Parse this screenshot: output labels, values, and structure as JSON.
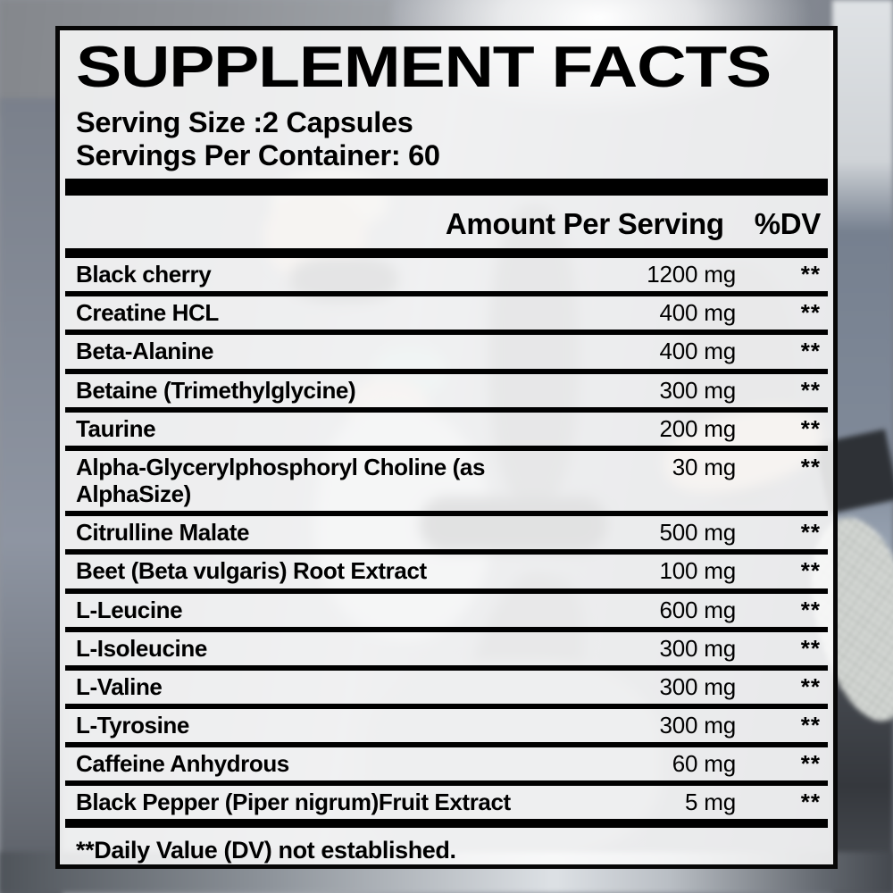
{
  "label": {
    "title": "SUPPLEMENT FACTS",
    "serving_size": "Serving Size :2 Capsules",
    "servings_per_container": "Servings Per Container: 60",
    "header": {
      "amount": "Amount Per Serving",
      "dv": "%DV"
    },
    "rows": [
      {
        "name": "Black cherry",
        "amount": "1200 mg",
        "dv": "**"
      },
      {
        "name": "Creatine HCL",
        "amount": "400 mg",
        "dv": "**"
      },
      {
        "name": "Beta-Alanine",
        "amount": "400 mg",
        "dv": "**"
      },
      {
        "name": "Betaine (Trimethylglycine)",
        "amount": "300 mg",
        "dv": "**"
      },
      {
        "name": "Taurine",
        "amount": "200 mg",
        "dv": "**"
      },
      {
        "name": "Alpha-Glycerylphosphoryl Choline (as AlphaSize)",
        "amount": "30 mg",
        "dv": "**"
      },
      {
        "name": "Citrulline Malate",
        "amount": "500 mg",
        "dv": "**"
      },
      {
        "name": "Beet (Beta vulgaris) Root Extract",
        "amount": "100 mg",
        "dv": "**"
      },
      {
        "name": "L-Leucine",
        "amount": "600 mg",
        "dv": "**"
      },
      {
        "name": "L-Isoleucine",
        "amount": "300 mg",
        "dv": "**"
      },
      {
        "name": "L-Valine",
        "amount": "300 mg",
        "dv": "**"
      },
      {
        "name": "L-Tyrosine",
        "amount": "300 mg",
        "dv": "**"
      },
      {
        "name": "Caffeine Anhydrous",
        "amount": "60 mg",
        "dv": "**"
      },
      {
        "name": "Black Pepper (Piper nigrum)Fruit Extract",
        "amount": "5 mg",
        "dv": "**"
      }
    ],
    "footnote": "**Daily Value (DV) not established."
  },
  "colors": {
    "text": "#000000",
    "panel_overlay": "rgba(252,252,252,0.86)",
    "divider": "#000000"
  }
}
